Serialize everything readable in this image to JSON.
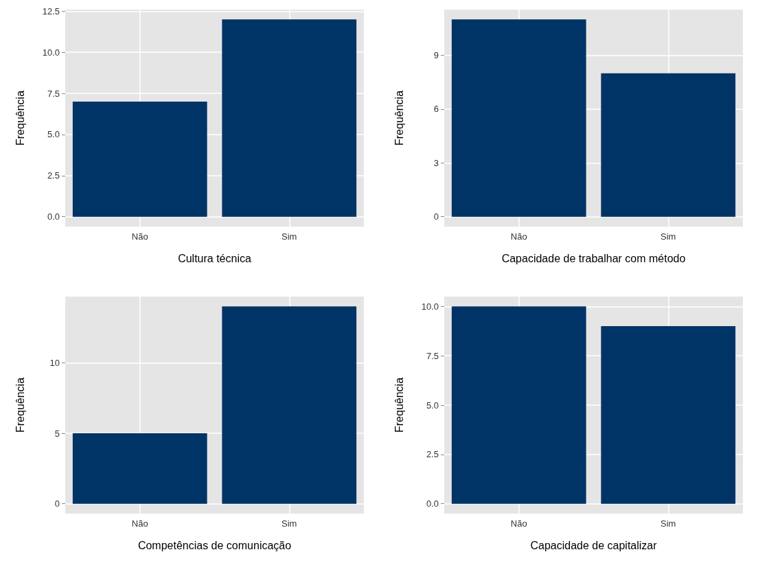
{
  "chart_data": [
    {
      "type": "bar",
      "xlabel": "Cultura técnica",
      "ylabel": "Frequência",
      "categories": [
        "Não",
        "Sim"
      ],
      "values": [
        7,
        12
      ],
      "color": "#003366",
      "ylim": [
        -0.6,
        12.6
      ],
      "yticks": [
        {
          "value": 0,
          "label": "0.0"
        },
        {
          "value": 2.5,
          "label": "2.5"
        },
        {
          "value": 5,
          "label": "5.0"
        },
        {
          "value": 7.5,
          "label": "7.5"
        },
        {
          "value": 10,
          "label": "10.0"
        },
        {
          "value": 12.5,
          "label": "12.5"
        }
      ],
      "grid": true
    },
    {
      "type": "bar",
      "xlabel": "Capacidade de trabalhar com método",
      "ylabel": "Frequência",
      "categories": [
        "Não",
        "Sim"
      ],
      "values": [
        11,
        8
      ],
      "color": "#003366",
      "ylim": [
        -0.55,
        11.55
      ],
      "yticks": [
        0,
        3,
        6,
        9
      ],
      "grid": true
    },
    {
      "type": "bar",
      "xlabel": "Competências de comunicação",
      "ylabel": "Frequência",
      "categories": [
        "Não",
        "Sim"
      ],
      "values": [
        5,
        14
      ],
      "color": "#003366",
      "ylim": [
        -0.7,
        14.7
      ],
      "yticks": [
        0,
        5,
        10
      ],
      "grid": true
    },
    {
      "type": "bar",
      "xlabel": "Capacidade de capitalizar",
      "ylabel": "Frequência",
      "categories": [
        "Não",
        "Sim"
      ],
      "values": [
        10,
        9
      ],
      "color": "#003366",
      "ylim": [
        -0.5,
        10.5
      ],
      "yticks": [
        {
          "value": 0,
          "label": "0.0"
        },
        {
          "value": 2.5,
          "label": "2.5"
        },
        {
          "value": 5,
          "label": "5.0"
        },
        {
          "value": 7.5,
          "label": "7.5"
        },
        {
          "value": 10,
          "label": "10.0"
        }
      ],
      "grid": true
    }
  ]
}
